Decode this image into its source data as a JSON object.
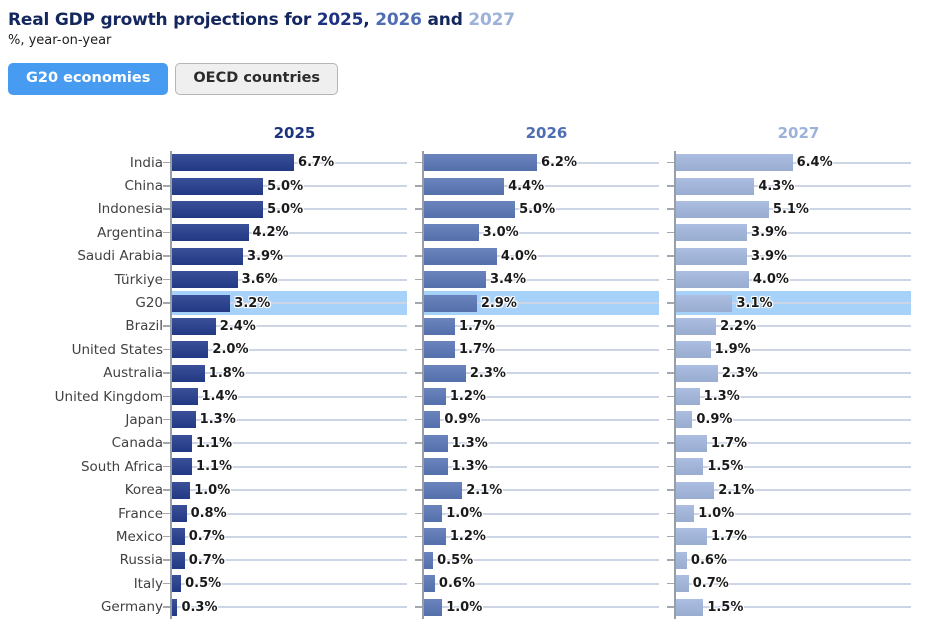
{
  "header": {
    "title_prefix": "Real GDP growth projections for ",
    "title_year_2025": "2025",
    "title_comma": ", ",
    "title_year_2026": "2026",
    "title_and": " and ",
    "title_year_2027": "2027",
    "subtitle": "%, year-on-year"
  },
  "toggles": {
    "g20_label": "G20 economies",
    "oecd_label": "OECD countries"
  },
  "colors": {
    "title_navy": "#14265e",
    "year_2025": "#1d3380",
    "year_2026": "#4e6db4",
    "year_2027": "#9db2da",
    "highlight_band": "#a6d2f9",
    "active_button": "#479bf1",
    "gridline": "#ccd5e6",
    "axis": "#989ea6"
  },
  "chart_data": {
    "type": "bar",
    "orientation": "horizontal",
    "title": "Real GDP growth projections for 2025, 2026 and 2027",
    "subtitle": "%, year-on-year",
    "unit": "%",
    "value_suffix": "%",
    "xlim": [
      0,
      12.9
    ],
    "grid": true,
    "highlight_category": "G20",
    "categories": [
      "India",
      "China",
      "Indonesia",
      "Argentina",
      "Saudi Arabia",
      "Türkiye",
      "G20",
      "Brazil",
      "United States",
      "Australia",
      "United Kingdom",
      "Japan",
      "Canada",
      "South Africa",
      "Korea",
      "France",
      "Mexico",
      "Russia",
      "Italy",
      "Germany"
    ],
    "series": [
      {
        "name": "2025",
        "bar_color": "#243c8c",
        "header_color": "#1d3380",
        "values": [
          6.7,
          5.0,
          5.0,
          4.2,
          3.9,
          3.6,
          3.2,
          2.4,
          2.0,
          1.8,
          1.4,
          1.3,
          1.1,
          1.1,
          1.0,
          0.8,
          0.7,
          0.7,
          0.5,
          0.3
        ]
      },
      {
        "name": "2026",
        "bar_color": "#5a76b6",
        "header_color": "#4e6db4",
        "values": [
          6.2,
          4.4,
          5.0,
          3.0,
          4.0,
          3.4,
          2.9,
          1.7,
          1.7,
          2.3,
          1.2,
          0.9,
          1.3,
          1.3,
          2.1,
          1.0,
          1.2,
          0.5,
          0.6,
          1.0
        ]
      },
      {
        "name": "2027",
        "bar_color": "#a2b7de",
        "header_color": "#9db2da",
        "values": [
          6.4,
          4.3,
          5.1,
          3.9,
          3.9,
          4.0,
          3.1,
          2.2,
          1.9,
          2.3,
          1.3,
          0.9,
          1.7,
          1.5,
          2.1,
          1.0,
          1.7,
          0.6,
          0.7,
          1.5
        ]
      }
    ]
  }
}
